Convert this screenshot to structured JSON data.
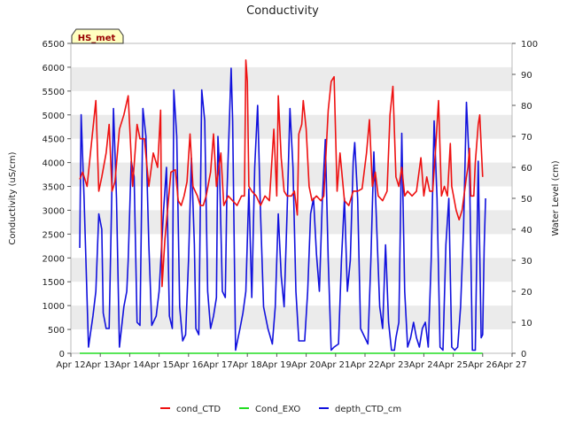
{
  "chart_data": {
    "type": "line",
    "title": "Conductivity",
    "badge": "HS_met",
    "xlabel": "",
    "ylabel": "Conductivity (uS/cm)",
    "y2label": "Water Level (cm)",
    "x_ticks": [
      "Apr 12",
      "Apr 13",
      "Apr 14",
      "Apr 15",
      "Apr 16",
      "Apr 17",
      "Apr 18",
      "Apr 19",
      "Apr 20",
      "Apr 21",
      "Apr 22",
      "Apr 23",
      "Apr 24",
      "Apr 25",
      "Apr 26",
      "Apr 27"
    ],
    "xlim": [
      0,
      15
    ],
    "ylim": [
      0,
      6500
    ],
    "y_ticks": [
      0,
      500,
      1000,
      1500,
      2000,
      2500,
      3000,
      3500,
      4000,
      4500,
      5000,
      5500,
      6000,
      6500
    ],
    "y2lim": [
      0,
      100
    ],
    "y2_ticks": [
      0,
      10,
      20,
      30,
      40,
      50,
      60,
      70,
      80,
      90,
      100
    ],
    "grid": "horizontal bands",
    "legend_position": "bottom-center",
    "series": [
      {
        "name": "cond_CTD",
        "color": "#ee1111",
        "axis": "left",
        "points": [
          [
            0.3,
            3650
          ],
          [
            0.4,
            3800
          ],
          [
            0.55,
            3500
          ],
          [
            0.7,
            4400
          ],
          [
            0.85,
            5300
          ],
          [
            0.95,
            3400
          ],
          [
            1.05,
            3700
          ],
          [
            1.2,
            4200
          ],
          [
            1.3,
            4800
          ],
          [
            1.4,
            3400
          ],
          [
            1.5,
            3600
          ],
          [
            1.65,
            4700
          ],
          [
            1.8,
            5000
          ],
          [
            1.95,
            5400
          ],
          [
            2.1,
            3500
          ],
          [
            2.25,
            4800
          ],
          [
            2.35,
            4500
          ],
          [
            2.5,
            4500
          ],
          [
            2.65,
            3500
          ],
          [
            2.8,
            4200
          ],
          [
            2.95,
            3900
          ],
          [
            3.05,
            5100
          ],
          [
            3.1,
            1400
          ],
          [
            3.2,
            2400
          ],
          [
            3.3,
            3100
          ],
          [
            3.4,
            3800
          ],
          [
            3.55,
            3850
          ],
          [
            3.65,
            3200
          ],
          [
            3.75,
            3100
          ],
          [
            3.85,
            3300
          ],
          [
            3.95,
            3600
          ],
          [
            4.05,
            4600
          ],
          [
            4.15,
            3500
          ],
          [
            4.3,
            3300
          ],
          [
            4.4,
            3100
          ],
          [
            4.5,
            3100
          ],
          [
            4.6,
            3300
          ],
          [
            4.75,
            3800
          ],
          [
            4.85,
            4600
          ],
          [
            4.95,
            3500
          ],
          [
            5.1,
            4200
          ],
          [
            5.2,
            3100
          ],
          [
            5.35,
            3300
          ],
          [
            5.5,
            3200
          ],
          [
            5.65,
            3100
          ],
          [
            5.8,
            3300
          ],
          [
            5.9,
            3300
          ],
          [
            5.95,
            6150
          ],
          [
            6.0,
            5700
          ],
          [
            6.05,
            3500
          ],
          [
            6.15,
            3400
          ],
          [
            6.3,
            3300
          ],
          [
            6.45,
            3100
          ],
          [
            6.6,
            3300
          ],
          [
            6.75,
            3200
          ],
          [
            6.9,
            4700
          ],
          [
            7.0,
            3300
          ],
          [
            7.05,
            5400
          ],
          [
            7.15,
            4100
          ],
          [
            7.25,
            3400
          ],
          [
            7.35,
            3300
          ],
          [
            7.5,
            3300
          ],
          [
            7.6,
            3400
          ],
          [
            7.7,
            2900
          ],
          [
            7.75,
            4600
          ],
          [
            7.85,
            4800
          ],
          [
            7.9,
            5300
          ],
          [
            8.0,
            4700
          ],
          [
            8.1,
            3500
          ],
          [
            8.2,
            3200
          ],
          [
            8.35,
            3300
          ],
          [
            8.5,
            3200
          ],
          [
            8.6,
            3300
          ],
          [
            8.75,
            5100
          ],
          [
            8.85,
            5700
          ],
          [
            8.95,
            5800
          ],
          [
            9.05,
            3400
          ],
          [
            9.15,
            4200
          ],
          [
            9.3,
            3200
          ],
          [
            9.45,
            3100
          ],
          [
            9.6,
            3400
          ],
          [
            9.75,
            3400
          ],
          [
            9.9,
            3450
          ],
          [
            10.05,
            4200
          ],
          [
            10.15,
            4900
          ],
          [
            10.25,
            3500
          ],
          [
            10.35,
            3800
          ],
          [
            10.45,
            3300
          ],
          [
            10.6,
            3200
          ],
          [
            10.75,
            3400
          ],
          [
            10.85,
            5000
          ],
          [
            10.95,
            5600
          ],
          [
            11.05,
            3700
          ],
          [
            11.15,
            3500
          ],
          [
            11.25,
            3900
          ],
          [
            11.35,
            3300
          ],
          [
            11.45,
            3400
          ],
          [
            11.6,
            3300
          ],
          [
            11.75,
            3400
          ],
          [
            11.9,
            4100
          ],
          [
            12.0,
            3300
          ],
          [
            12.1,
            3700
          ],
          [
            12.2,
            3400
          ],
          [
            12.3,
            3400
          ],
          [
            12.4,
            4300
          ],
          [
            12.5,
            5300
          ],
          [
            12.6,
            3300
          ],
          [
            12.7,
            3500
          ],
          [
            12.8,
            3300
          ],
          [
            12.9,
            4400
          ],
          [
            12.95,
            3500
          ],
          [
            13.1,
            3000
          ],
          [
            13.2,
            2800
          ],
          [
            13.3,
            3000
          ],
          [
            13.45,
            3700
          ],
          [
            13.5,
            3900
          ],
          [
            13.55,
            4300
          ],
          [
            13.6,
            3300
          ],
          [
            13.7,
            3300
          ],
          [
            13.75,
            4000
          ],
          [
            13.85,
            4800
          ],
          [
            13.9,
            5000
          ],
          [
            14.0,
            3700
          ]
        ]
      },
      {
        "name": "Cond_EXO",
        "color": "#22dd22",
        "axis": "left",
        "points": [
          [
            0.3,
            0
          ],
          [
            14.0,
            0
          ]
        ]
      },
      {
        "name": "depth_CTD_cm",
        "color": "#1111dd",
        "axis": "right",
        "points": [
          [
            0.3,
            34
          ],
          [
            0.35,
            77
          ],
          [
            0.45,
            50
          ],
          [
            0.6,
            2
          ],
          [
            0.75,
            12
          ],
          [
            0.85,
            20
          ],
          [
            0.95,
            45
          ],
          [
            1.05,
            40
          ],
          [
            1.1,
            13
          ],
          [
            1.2,
            8
          ],
          [
            1.3,
            8
          ],
          [
            1.45,
            79
          ],
          [
            1.55,
            50
          ],
          [
            1.65,
            2
          ],
          [
            1.8,
            15
          ],
          [
            1.9,
            20
          ],
          [
            1.95,
            30
          ],
          [
            2.05,
            62
          ],
          [
            2.15,
            57
          ],
          [
            2.25,
            10
          ],
          [
            2.35,
            9
          ],
          [
            2.45,
            79
          ],
          [
            2.55,
            70
          ],
          [
            2.65,
            35
          ],
          [
            2.75,
            9
          ],
          [
            2.9,
            12
          ],
          [
            3.0,
            20
          ],
          [
            3.15,
            46
          ],
          [
            3.25,
            60
          ],
          [
            3.35,
            12
          ],
          [
            3.45,
            8
          ],
          [
            3.5,
            85
          ],
          [
            3.6,
            70
          ],
          [
            3.7,
            15
          ],
          [
            3.8,
            4
          ],
          [
            3.9,
            6
          ],
          [
            4.0,
            30
          ],
          [
            4.1,
            63
          ],
          [
            4.2,
            35
          ],
          [
            4.25,
            8
          ],
          [
            4.35,
            6
          ],
          [
            4.45,
            85
          ],
          [
            4.55,
            75
          ],
          [
            4.65,
            20
          ],
          [
            4.75,
            8
          ],
          [
            4.85,
            12
          ],
          [
            4.95,
            18
          ],
          [
            5.0,
            70
          ],
          [
            5.05,
            60
          ],
          [
            5.15,
            20
          ],
          [
            5.25,
            18
          ],
          [
            5.3,
            50
          ],
          [
            5.45,
            92
          ],
          [
            5.5,
            75
          ],
          [
            5.6,
            1
          ],
          [
            5.75,
            8
          ],
          [
            5.85,
            13
          ],
          [
            5.95,
            20
          ],
          [
            6.05,
            53
          ],
          [
            6.15,
            18
          ],
          [
            6.25,
            60
          ],
          [
            6.35,
            80
          ],
          [
            6.45,
            45
          ],
          [
            6.55,
            15
          ],
          [
            6.7,
            8
          ],
          [
            6.85,
            3
          ],
          [
            6.95,
            15
          ],
          [
            7.05,
            45
          ],
          [
            7.15,
            25
          ],
          [
            7.25,
            15
          ],
          [
            7.35,
            45
          ],
          [
            7.45,
            79
          ],
          [
            7.55,
            60
          ],
          [
            7.65,
            20
          ],
          [
            7.75,
            4
          ],
          [
            7.95,
            4
          ],
          [
            8.05,
            20
          ],
          [
            8.15,
            45
          ],
          [
            8.25,
            50
          ],
          [
            8.35,
            32
          ],
          [
            8.45,
            20
          ],
          [
            8.55,
            50
          ],
          [
            8.65,
            69
          ],
          [
            8.75,
            30
          ],
          [
            8.85,
            1
          ],
          [
            8.95,
            2
          ],
          [
            9.1,
            3
          ],
          [
            9.2,
            30
          ],
          [
            9.3,
            50
          ],
          [
            9.4,
            20
          ],
          [
            9.5,
            30
          ],
          [
            9.6,
            62
          ],
          [
            9.65,
            68
          ],
          [
            9.75,
            50
          ],
          [
            9.85,
            8
          ],
          [
            9.95,
            6
          ],
          [
            10.1,
            3
          ],
          [
            10.2,
            30
          ],
          [
            10.3,
            65
          ],
          [
            10.4,
            40
          ],
          [
            10.5,
            15
          ],
          [
            10.6,
            8
          ],
          [
            10.7,
            35
          ],
          [
            10.8,
            10
          ],
          [
            10.9,
            1
          ],
          [
            11.0,
            1
          ],
          [
            11.05,
            5
          ],
          [
            11.15,
            10
          ],
          [
            11.25,
            71
          ],
          [
            11.35,
            20
          ],
          [
            11.45,
            2
          ],
          [
            11.55,
            5
          ],
          [
            11.65,
            10
          ],
          [
            11.75,
            5
          ],
          [
            11.85,
            2
          ],
          [
            11.95,
            8
          ],
          [
            12.05,
            10
          ],
          [
            12.15,
            2
          ],
          [
            12.25,
            30
          ],
          [
            12.35,
            75
          ],
          [
            12.45,
            50
          ],
          [
            12.55,
            2
          ],
          [
            12.65,
            1
          ],
          [
            12.75,
            35
          ],
          [
            12.85,
            50
          ],
          [
            12.95,
            2
          ],
          [
            13.05,
            1
          ],
          [
            13.15,
            2
          ],
          [
            13.25,
            15
          ],
          [
            13.35,
            40
          ],
          [
            13.45,
            81
          ],
          [
            13.55,
            60
          ],
          [
            13.65,
            1
          ],
          [
            13.75,
            1
          ],
          [
            13.85,
            62
          ],
          [
            13.95,
            5
          ],
          [
            14.0,
            6
          ],
          [
            14.05,
            34
          ],
          [
            14.1,
            50
          ]
        ]
      }
    ]
  }
}
